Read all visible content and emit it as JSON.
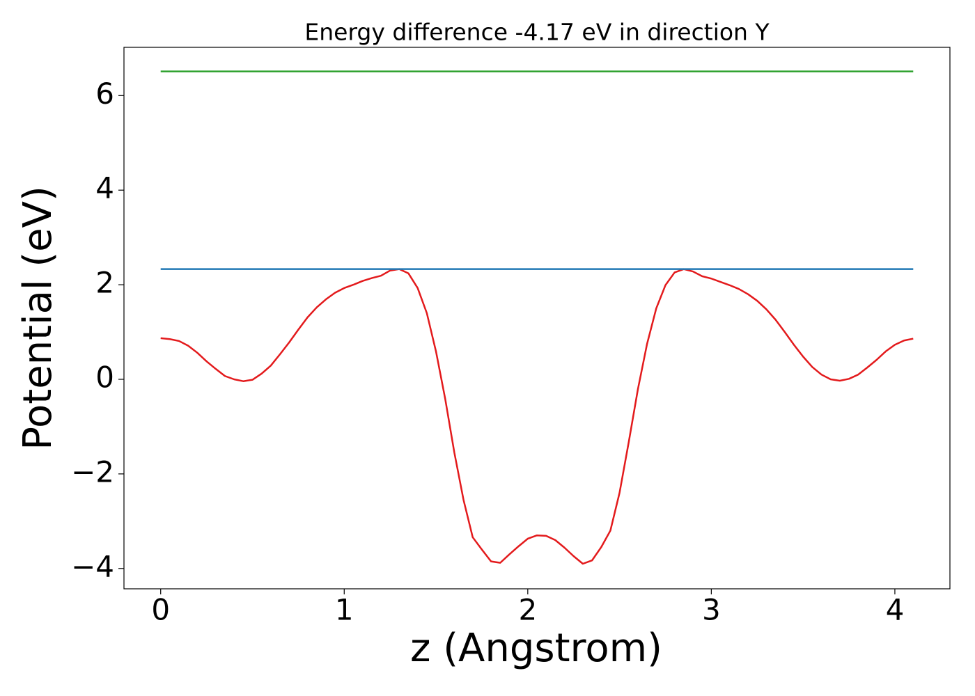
{
  "chart_data": {
    "type": "line",
    "title": "Energy difference -4.17 eV in direction Y",
    "xlabel": "z (Angstrom)",
    "ylabel": "Potential (eV)",
    "xlim": [
      -0.2,
      4.3
    ],
    "ylim": [
      -4.43,
      7.02
    ],
    "xticks": [
      0,
      1,
      2,
      3,
      4
    ],
    "yticks": [
      {
        "value": -4,
        "label": "−4"
      },
      {
        "value": -2,
        "label": "−2"
      },
      0,
      2,
      4,
      6
    ],
    "grid": false,
    "series": [
      {
        "color": "#e31a1c",
        "x": [
          0,
          0.05,
          0.1,
          0.15,
          0.2,
          0.25,
          0.3,
          0.35,
          0.4,
          0.45,
          0.5,
          0.55,
          0.6,
          0.65,
          0.7,
          0.75,
          0.8,
          0.85,
          0.9,
          0.95,
          1.0,
          1.05,
          1.1,
          1.15,
          1.2,
          1.25,
          1.3,
          1.35,
          1.4,
          1.45,
          1.5,
          1.55,
          1.6,
          1.65,
          1.7,
          1.75,
          1.8,
          1.85,
          1.9,
          1.95,
          2.0,
          2.05,
          2.1,
          2.15,
          2.2,
          2.25,
          2.3,
          2.35,
          2.4,
          2.45,
          2.5,
          2.55,
          2.6,
          2.65,
          2.7,
          2.75,
          2.8,
          2.85,
          2.9,
          2.95,
          3.0,
          3.05,
          3.1,
          3.15,
          3.2,
          3.25,
          3.3,
          3.35,
          3.4,
          3.45,
          3.5,
          3.55,
          3.6,
          3.65,
          3.7,
          3.75,
          3.8,
          3.85,
          3.9,
          3.95,
          4.0,
          4.05,
          4.1
        ],
        "values": [
          0.87,
          0.85,
          0.81,
          0.71,
          0.56,
          0.38,
          0.22,
          0.07,
          0.0,
          -0.04,
          -0.01,
          0.12,
          0.29,
          0.53,
          0.78,
          1.05,
          1.31,
          1.52,
          1.69,
          1.83,
          1.93,
          2.0,
          2.08,
          2.14,
          2.19,
          2.3,
          2.33,
          2.24,
          1.93,
          1.4,
          0.59,
          -0.41,
          -1.55,
          -2.55,
          -3.34,
          -3.6,
          -3.85,
          -3.88,
          -3.7,
          -3.53,
          -3.37,
          -3.3,
          -3.31,
          -3.4,
          -3.56,
          -3.74,
          -3.9,
          -3.83,
          -3.55,
          -3.2,
          -2.4,
          -1.33,
          -0.21,
          0.75,
          1.5,
          1.99,
          2.26,
          2.33,
          2.28,
          2.18,
          2.13,
          2.06,
          1.99,
          1.91,
          1.8,
          1.66,
          1.48,
          1.26,
          1.0,
          0.73,
          0.48,
          0.26,
          0.1,
          0.0,
          -0.03,
          0.01,
          0.1,
          0.25,
          0.41,
          0.59,
          0.73,
          0.82,
          0.86
        ]
      },
      {
        "color": "#1f77b4",
        "x": [
          0,
          4.1
        ],
        "values": [
          2.33,
          2.33
        ]
      },
      {
        "color": "#2ca02c",
        "x": [
          0,
          4.1
        ],
        "values": [
          6.51,
          6.51
        ]
      }
    ]
  }
}
